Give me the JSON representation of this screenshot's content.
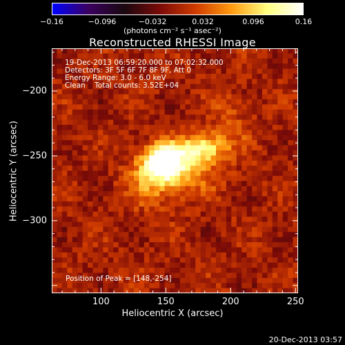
{
  "colorbar": {
    "ticks": [
      "−0.16",
      "−0.096",
      "−0.032",
      "0.032",
      "0.096",
      "0.16"
    ],
    "tick_values": [
      -0.16,
      -0.096,
      -0.032,
      0.032,
      0.096,
      0.16
    ],
    "units": "(photons cm⁻² s⁻¹ asec⁻²)"
  },
  "chart_data": {
    "type": "heatmap",
    "title": "Reconstructed RHESSI Image",
    "xlabel": "Heliocentric X (arcsec)",
    "ylabel": "Heliocentric Y (arcsec)",
    "xlim": [
      62,
      252
    ],
    "ylim": [
      -356,
      -167
    ],
    "x_ticks": [
      100,
      150,
      200,
      250
    ],
    "y_ticks": [
      -200,
      -250,
      -300
    ],
    "x_tick_labels": [
      "100",
      "150",
      "200",
      "250"
    ],
    "y_tick_labels": [
      "−200",
      "−250",
      "−300"
    ],
    "value_range": [
      -0.16,
      0.16
    ],
    "colors": [
      "#0000ff",
      "#3a0060",
      "#1a0810",
      "#7a0a08",
      "#d03b00",
      "#ff9a10",
      "#ffff80",
      "#ffffff"
    ],
    "sources": [
      {
        "x": 148,
        "y": -254,
        "peak": 0.16,
        "sx": 11,
        "sy": 9
      },
      {
        "x": 178,
        "y": -244,
        "peak": 0.11,
        "sx": 13,
        "sy": 8
      },
      {
        "x": 160,
        "y": -262,
        "peak": 0.07,
        "sx": 20,
        "sy": 12
      },
      {
        "x": 140,
        "y": -272,
        "peak": 0.045,
        "sx": 14,
        "sy": 14
      },
      {
        "x": 200,
        "y": -225,
        "peak": 0.03,
        "sx": 12,
        "sy": 16
      }
    ],
    "annotations": {
      "time_range": "19-Dec-2013 06:59:20.000 to 07:02:32.000",
      "detectors": "Detectors: 3F 5F 6F 7F 8F 9F, Att 0",
      "energy": "Energy Range: 3.0 - 6.0 keV",
      "clean": "Clean    Total counts: 3.52E+04",
      "peak": "Position of Peak = [148,-254]"
    }
  },
  "footer": {
    "timestamp": "20-Dec-2013 03:57"
  }
}
